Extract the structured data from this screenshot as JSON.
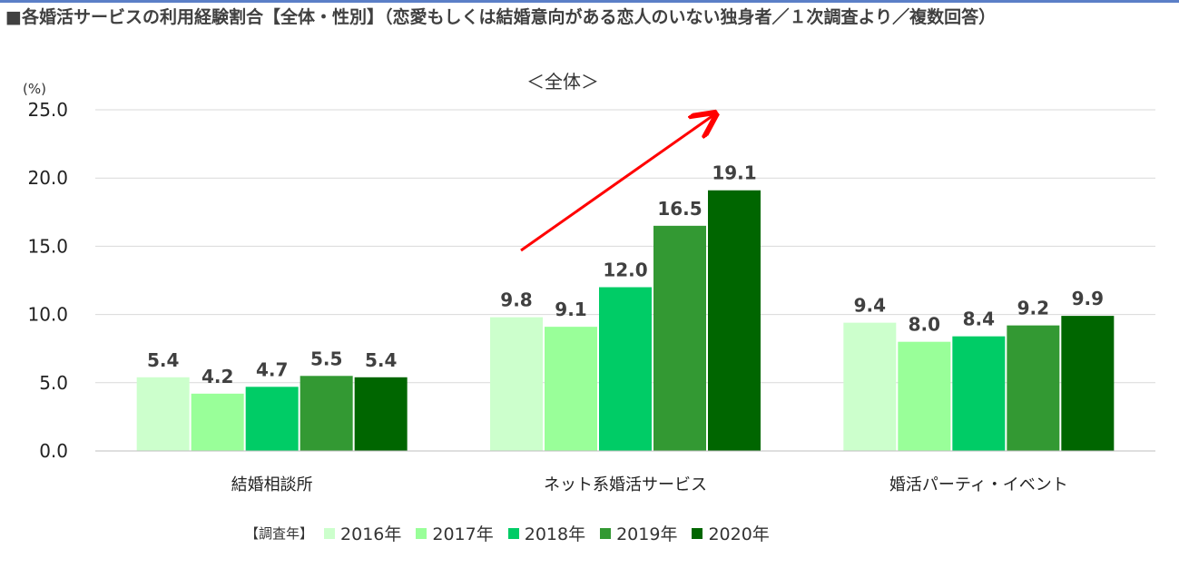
{
  "title": "■各婚活サービスの利用経験割合【全体・性別】（恋愛もしくは結婚意向がある恋人のいない独身者／１次調査より／複数回答）",
  "chart_data": {
    "type": "bar",
    "subtitle": "＜全体＞",
    "ylabel": "(%)",
    "ylim": [
      0,
      25
    ],
    "yticks": [
      "0.0",
      "5.0",
      "10.0",
      "15.0",
      "20.0",
      "25.0"
    ],
    "grid": true,
    "categories": [
      "結婚相談所",
      "ネット系婚活サービス",
      "婚活パーティ・イベント"
    ],
    "legend_title": "【調査年】",
    "legend_position": "bottom",
    "series": [
      {
        "name": "2016年",
        "color": "#ccffcc",
        "values": [
          5.4,
          9.8,
          9.4
        ]
      },
      {
        "name": "2017年",
        "color": "#99ff99",
        "values": [
          4.2,
          9.1,
          8.0
        ]
      },
      {
        "name": "2018年",
        "color": "#00cc66",
        "values": [
          4.7,
          12.0,
          8.4
        ]
      },
      {
        "name": "2019年",
        "color": "#339933",
        "values": [
          5.5,
          16.5,
          9.2
        ]
      },
      {
        "name": "2020年",
        "color": "#006600",
        "values": [
          5.4,
          19.1,
          9.9
        ]
      }
    ],
    "annotation": {
      "type": "arrow",
      "color": "#ff0000",
      "category": "ネット系婚活サービス"
    }
  }
}
